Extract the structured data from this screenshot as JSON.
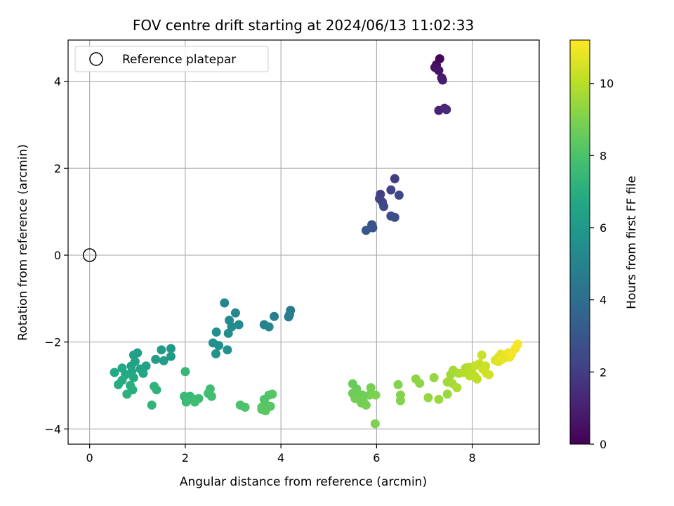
{
  "chart_data": {
    "type": "scatter",
    "title": "FOV centre drift starting at 2024/06/13 11:02:33",
    "xlabel": "Angular distance from reference (arcmin)",
    "ylabel": "Rotation from reference (arcmin)",
    "xlim": [
      -0.45,
      9.4
    ],
    "ylim": [
      -4.35,
      4.95
    ],
    "xticks": [
      0,
      2,
      4,
      6,
      8
    ],
    "xtick_labels": [
      "0",
      "2",
      "4",
      "6",
      "8"
    ],
    "yticks": [
      -4,
      -2,
      0,
      2,
      4
    ],
    "ytick_labels": [
      "−4",
      "−2",
      "0",
      "2",
      "4"
    ],
    "grid": true,
    "legend": {
      "placement": "top-left",
      "entries": [
        "Reference platepar"
      ]
    },
    "reference_point": {
      "x": 0,
      "y": 0,
      "label": "Reference platepar"
    },
    "colorbar": {
      "label": "Hours from first FF file",
      "colormap": "viridis",
      "range": [
        0,
        11.2
      ],
      "ticks": [
        0,
        2,
        4,
        6,
        8,
        10
      ],
      "tick_labels": [
        "0",
        "2",
        "4",
        "6",
        "8",
        "10"
      ]
    },
    "points": [
      {
        "x": 7.32,
        "y": 4.52,
        "c": 0.1
      },
      {
        "x": 7.25,
        "y": 4.38,
        "c": 0.3
      },
      {
        "x": 7.22,
        "y": 4.32,
        "c": 0.5
      },
      {
        "x": 7.3,
        "y": 4.25,
        "c": 0.6
      },
      {
        "x": 7.36,
        "y": 4.08,
        "c": 0.8
      },
      {
        "x": 7.38,
        "y": 4.03,
        "c": 0.9
      },
      {
        "x": 7.3,
        "y": 3.33,
        "c": 1.1
      },
      {
        "x": 7.42,
        "y": 3.38,
        "c": 1.2
      },
      {
        "x": 7.46,
        "y": 3.35,
        "c": 1.3
      },
      {
        "x": 6.38,
        "y": 1.76,
        "c": 2.0
      },
      {
        "x": 6.08,
        "y": 1.4,
        "c": 2.1
      },
      {
        "x": 6.06,
        "y": 1.3,
        "c": 2.2
      },
      {
        "x": 6.12,
        "y": 1.22,
        "c": 2.3
      },
      {
        "x": 6.3,
        "y": 1.5,
        "c": 2.2
      },
      {
        "x": 6.47,
        "y": 1.38,
        "c": 2.4
      },
      {
        "x": 6.15,
        "y": 1.12,
        "c": 2.5
      },
      {
        "x": 6.3,
        "y": 0.9,
        "c": 2.6
      },
      {
        "x": 6.38,
        "y": 0.87,
        "c": 2.7
      },
      {
        "x": 5.9,
        "y": 0.7,
        "c": 2.8
      },
      {
        "x": 5.92,
        "y": 0.63,
        "c": 2.9
      },
      {
        "x": 5.78,
        "y": 0.57,
        "c": 3.0
      },
      {
        "x": 4.2,
        "y": -1.27,
        "c": 4.6
      },
      {
        "x": 4.18,
        "y": -1.37,
        "c": 4.7
      },
      {
        "x": 3.86,
        "y": -1.41,
        "c": 4.8
      },
      {
        "x": 4.16,
        "y": -1.42,
        "c": 4.7
      },
      {
        "x": 3.65,
        "y": -1.6,
        "c": 4.9
      },
      {
        "x": 3.75,
        "y": -1.65,
        "c": 5.0
      },
      {
        "x": 2.82,
        "y": -1.1,
        "c": 5.1
      },
      {
        "x": 3.05,
        "y": -1.33,
        "c": 5.2
      },
      {
        "x": 2.92,
        "y": -1.5,
        "c": 5.3
      },
      {
        "x": 3.12,
        "y": -1.6,
        "c": 5.3
      },
      {
        "x": 2.97,
        "y": -1.65,
        "c": 5.4
      },
      {
        "x": 2.9,
        "y": -1.8,
        "c": 5.4
      },
      {
        "x": 2.65,
        "y": -1.77,
        "c": 5.5
      },
      {
        "x": 2.58,
        "y": -2.02,
        "c": 5.5
      },
      {
        "x": 2.7,
        "y": -2.08,
        "c": 5.6
      },
      {
        "x": 2.88,
        "y": -2.18,
        "c": 5.6
      },
      {
        "x": 2.64,
        "y": -2.27,
        "c": 5.7
      },
      {
        "x": 1.7,
        "y": -2.15,
        "c": 6.0
      },
      {
        "x": 1.5,
        "y": -2.18,
        "c": 6.1
      },
      {
        "x": 1.7,
        "y": -2.33,
        "c": 6.1
      },
      {
        "x": 1.55,
        "y": -2.43,
        "c": 6.2
      },
      {
        "x": 1.38,
        "y": -2.4,
        "c": 6.2
      },
      {
        "x": 1.0,
        "y": -2.25,
        "c": 6.3
      },
      {
        "x": 0.92,
        "y": -2.3,
        "c": 6.3
      },
      {
        "x": 0.95,
        "y": -2.45,
        "c": 6.4
      },
      {
        "x": 1.18,
        "y": -2.55,
        "c": 6.4
      },
      {
        "x": 1.06,
        "y": -2.62,
        "c": 6.5
      },
      {
        "x": 0.87,
        "y": -2.55,
        "c": 6.5
      },
      {
        "x": 0.88,
        "y": -2.68,
        "c": 6.6
      },
      {
        "x": 1.12,
        "y": -2.72,
        "c": 6.6
      },
      {
        "x": 0.68,
        "y": -2.6,
        "c": 6.7
      },
      {
        "x": 0.52,
        "y": -2.7,
        "c": 6.7
      },
      {
        "x": 0.75,
        "y": -2.75,
        "c": 6.8
      },
      {
        "x": 0.92,
        "y": -2.82,
        "c": 6.8
      },
      {
        "x": 0.68,
        "y": -2.88,
        "c": 6.9
      },
      {
        "x": 0.6,
        "y": -2.98,
        "c": 6.9
      },
      {
        "x": 0.85,
        "y": -3.0,
        "c": 7.0
      },
      {
        "x": 0.9,
        "y": -3.1,
        "c": 7.0
      },
      {
        "x": 0.78,
        "y": -3.2,
        "c": 7.1
      },
      {
        "x": 1.35,
        "y": -3.02,
        "c": 7.2
      },
      {
        "x": 1.4,
        "y": -3.1,
        "c": 7.2
      },
      {
        "x": 1.3,
        "y": -3.45,
        "c": 7.3
      },
      {
        "x": 2.0,
        "y": -2.68,
        "c": 7.4
      },
      {
        "x": 1.98,
        "y": -3.25,
        "c": 7.5
      },
      {
        "x": 2.1,
        "y": -3.25,
        "c": 7.5
      },
      {
        "x": 2.2,
        "y": -3.32,
        "c": 7.6
      },
      {
        "x": 2.28,
        "y": -3.3,
        "c": 7.6
      },
      {
        "x": 2.02,
        "y": -3.38,
        "c": 7.6
      },
      {
        "x": 2.2,
        "y": -3.38,
        "c": 7.7
      },
      {
        "x": 2.52,
        "y": -3.08,
        "c": 7.7
      },
      {
        "x": 2.48,
        "y": -3.18,
        "c": 7.8
      },
      {
        "x": 2.55,
        "y": -3.25,
        "c": 7.8
      },
      {
        "x": 3.15,
        "y": -3.45,
        "c": 8.0
      },
      {
        "x": 3.25,
        "y": -3.5,
        "c": 8.0
      },
      {
        "x": 3.65,
        "y": -3.32,
        "c": 8.1
      },
      {
        "x": 3.75,
        "y": -3.22,
        "c": 8.1
      },
      {
        "x": 3.82,
        "y": -3.2,
        "c": 8.2
      },
      {
        "x": 3.6,
        "y": -3.5,
        "c": 8.2
      },
      {
        "x": 3.7,
        "y": -3.45,
        "c": 8.2
      },
      {
        "x": 3.78,
        "y": -3.48,
        "c": 8.3
      },
      {
        "x": 3.68,
        "y": -3.58,
        "c": 8.3
      },
      {
        "x": 3.6,
        "y": -3.55,
        "c": 8.3
      },
      {
        "x": 5.5,
        "y": -2.96,
        "c": 8.6
      },
      {
        "x": 5.58,
        "y": -3.08,
        "c": 8.6
      },
      {
        "x": 5.5,
        "y": -3.18,
        "c": 8.7
      },
      {
        "x": 5.62,
        "y": -3.2,
        "c": 8.7
      },
      {
        "x": 5.7,
        "y": -3.22,
        "c": 8.7
      },
      {
        "x": 5.55,
        "y": -3.3,
        "c": 8.8
      },
      {
        "x": 5.72,
        "y": -3.35,
        "c": 8.8
      },
      {
        "x": 5.68,
        "y": -3.4,
        "c": 8.8
      },
      {
        "x": 5.78,
        "y": -3.45,
        "c": 8.9
      },
      {
        "x": 5.85,
        "y": -3.22,
        "c": 8.9
      },
      {
        "x": 5.88,
        "y": -3.05,
        "c": 8.9
      },
      {
        "x": 5.98,
        "y": -3.22,
        "c": 9.0
      },
      {
        "x": 5.97,
        "y": -3.88,
        "c": 9.0
      },
      {
        "x": 6.45,
        "y": -2.98,
        "c": 9.1
      },
      {
        "x": 6.5,
        "y": -3.22,
        "c": 9.1
      },
      {
        "x": 6.5,
        "y": -3.35,
        "c": 9.1
      },
      {
        "x": 6.82,
        "y": -2.85,
        "c": 9.3
      },
      {
        "x": 6.9,
        "y": -2.95,
        "c": 9.3
      },
      {
        "x": 7.08,
        "y": -3.28,
        "c": 9.4
      },
      {
        "x": 7.2,
        "y": -2.82,
        "c": 9.4
      },
      {
        "x": 7.3,
        "y": -3.32,
        "c": 9.5
      },
      {
        "x": 7.48,
        "y": -3.2,
        "c": 9.5
      },
      {
        "x": 7.48,
        "y": -2.92,
        "c": 9.6
      },
      {
        "x": 7.55,
        "y": -2.75,
        "c": 9.6
      },
      {
        "x": 7.6,
        "y": -2.65,
        "c": 9.7
      },
      {
        "x": 7.58,
        "y": -2.95,
        "c": 9.7
      },
      {
        "x": 7.68,
        "y": -3.05,
        "c": 9.8
      },
      {
        "x": 7.72,
        "y": -2.72,
        "c": 9.8
      },
      {
        "x": 7.82,
        "y": -2.7,
        "c": 9.9
      },
      {
        "x": 7.86,
        "y": -2.6,
        "c": 9.9
      },
      {
        "x": 7.92,
        "y": -2.58,
        "c": 9.9
      },
      {
        "x": 7.98,
        "y": -2.68,
        "c": 10.0
      },
      {
        "x": 7.95,
        "y": -2.78,
        "c": 10.0
      },
      {
        "x": 8.05,
        "y": -2.78,
        "c": 10.1
      },
      {
        "x": 8.1,
        "y": -2.85,
        "c": 10.1
      },
      {
        "x": 8.05,
        "y": -2.55,
        "c": 10.2
      },
      {
        "x": 8.15,
        "y": -2.5,
        "c": 10.2
      },
      {
        "x": 8.2,
        "y": -2.3,
        "c": 10.3
      },
      {
        "x": 8.22,
        "y": -2.62,
        "c": 10.3
      },
      {
        "x": 8.28,
        "y": -2.55,
        "c": 10.3
      },
      {
        "x": 8.3,
        "y": -2.72,
        "c": 10.4
      },
      {
        "x": 8.35,
        "y": -2.75,
        "c": 10.4
      },
      {
        "x": 8.48,
        "y": -2.42,
        "c": 10.6
      },
      {
        "x": 8.55,
        "y": -2.35,
        "c": 10.6
      },
      {
        "x": 8.6,
        "y": -2.28,
        "c": 10.7
      },
      {
        "x": 8.55,
        "y": -2.45,
        "c": 10.7
      },
      {
        "x": 8.65,
        "y": -2.38,
        "c": 10.8
      },
      {
        "x": 8.7,
        "y": -2.3,
        "c": 10.8
      },
      {
        "x": 8.75,
        "y": -2.25,
        "c": 10.9
      },
      {
        "x": 8.78,
        "y": -2.35,
        "c": 10.9
      },
      {
        "x": 8.82,
        "y": -2.28,
        "c": 11.0
      },
      {
        "x": 8.9,
        "y": -2.15,
        "c": 11.0
      },
      {
        "x": 8.95,
        "y": -2.05,
        "c": 11.1
      },
      {
        "x": 8.62,
        "y": -2.4,
        "c": 10.8
      }
    ]
  }
}
